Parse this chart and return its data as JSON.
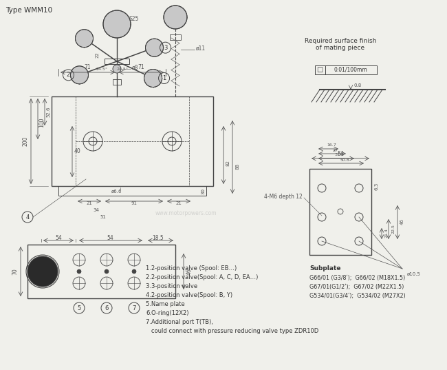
{
  "title": "Type WMM10",
  "bg_color": "#f0f0eb",
  "line_color": "#444444",
  "text_color": "#333333",
  "dim_color": "#555555",
  "watermark": "www.motorpowers.com",
  "legend_items": [
    "1.2-position valve (Spool: EB…)",
    "2.2-position valve(Spool: A, C, D, EA…)",
    "3.3-position valve",
    "4.2-position valve(Spool: B, Y)",
    "5.Name plate",
    "6.O-ring(12X2)",
    "7.Additional port T(TB),",
    "   could connect with pressure reducing valve type ZDR10D"
  ],
  "subplate_title": "Subplate",
  "subplate_items": [
    "G66/01 (G3/8ʹ);  G66/02 (M18X1.5)",
    "G67/01(G1/2ʹ);  G67/02 (M22X1.5)",
    "G534/01(G3/4ʹ);  G534/02 (M27X2)"
  ],
  "surface_finish_title": "Required surface finish\nof mating piece",
  "surface_finish_value": "0.01/100mm",
  "surface_finish_roughness": "0.8"
}
